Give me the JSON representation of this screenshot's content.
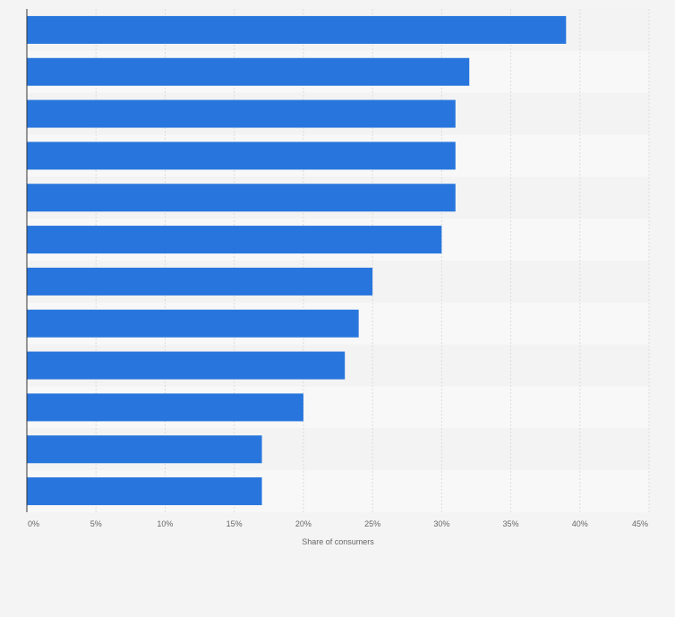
{
  "chart_data": {
    "type": "bar",
    "orientation": "horizontal",
    "categories": [
      "",
      "",
      "",
      "",
      "",
      "",
      "",
      "",
      "",
      "",
      "",
      ""
    ],
    "values": [
      39,
      32,
      31,
      31,
      31,
      30,
      25,
      24,
      23,
      20,
      17,
      17
    ],
    "xlabel": "Share of consumers",
    "xlim": [
      0,
      45
    ],
    "ticks": [
      {
        "value": 0,
        "label": "0%"
      },
      {
        "value": 5,
        "label": "5%"
      },
      {
        "value": 10,
        "label": "10%"
      },
      {
        "value": 15,
        "label": "15%"
      },
      {
        "value": 20,
        "label": "20%"
      },
      {
        "value": 25,
        "label": "25%"
      },
      {
        "value": 30,
        "label": "30%"
      },
      {
        "value": 35,
        "label": "35%"
      },
      {
        "value": 40,
        "label": "40%"
      },
      {
        "value": 45,
        "label": "45%"
      }
    ],
    "grid": true,
    "colors": {
      "bar": "#2876dd",
      "band_a": "#f3f3f3",
      "band_b": "#f8f8f8",
      "grid": "#dcdcdc",
      "axis": "#333333",
      "page": "#f4f4f4"
    }
  }
}
